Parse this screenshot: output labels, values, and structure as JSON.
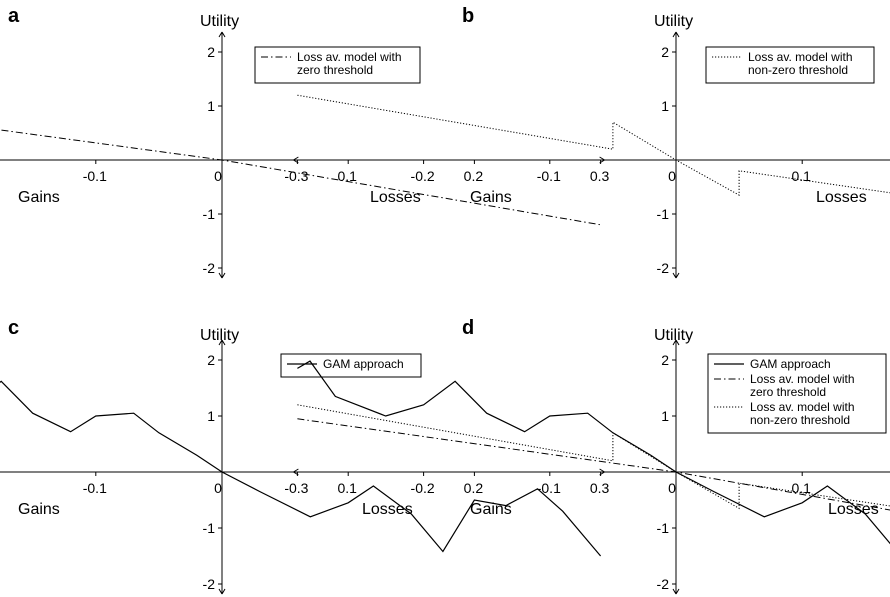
{
  "chart_data": [
    {
      "panel": "a",
      "type": "line",
      "title": "",
      "xlabel_left": "Gains",
      "xlabel_right": "Losses",
      "ylabel": "Utility",
      "xlim": [
        -0.3,
        0.3
      ],
      "ylim": [
        -2,
        2
      ],
      "xticks": [
        "-0.3",
        "-0.2",
        "-0.1",
        "0",
        "0.1",
        "0.2",
        "0.3"
      ],
      "yticks": [
        "-2",
        "-1",
        "1",
        "2"
      ],
      "legend": "top-right",
      "series": [
        {
          "name": "Loss av. model with zero threshold",
          "style": "dashdot",
          "x": [
            -0.3,
            0,
            0.3
          ],
          "y": [
            0.95,
            0,
            -1.2
          ]
        }
      ]
    },
    {
      "panel": "b",
      "type": "line",
      "title": "",
      "xlabel_left": "Gains",
      "xlabel_right": "Losses",
      "ylabel": "Utility",
      "xlim": [
        -0.3,
        0.3
      ],
      "ylim": [
        -2,
        2
      ],
      "xticks": [
        "-0.3",
        "-0.2",
        "-0.1",
        "0",
        "0.1",
        "0.2",
        "0.3"
      ],
      "yticks": [
        "-2",
        "-1",
        "1",
        "2"
      ],
      "legend": "top-right",
      "series": [
        {
          "name": "Loss av. model with non-zero threshold",
          "style": "dotted",
          "x": [
            -0.3,
            -0.05,
            -0.05,
            0,
            0.05,
            0.05,
            0.3
          ],
          "y": [
            1.2,
            0.2,
            0.7,
            0,
            -0.65,
            -0.2,
            -1.05
          ]
        }
      ]
    },
    {
      "panel": "c",
      "type": "line",
      "title": "",
      "xlabel_left": "Gains",
      "xlabel_right": "Losses",
      "ylabel": "Utility",
      "xlim": [
        -0.3,
        0.3
      ],
      "ylim": [
        -2,
        2
      ],
      "xticks": [
        "-0.3",
        "-0.2",
        "-0.1",
        "0",
        "0.1",
        "0.2",
        "0.3"
      ],
      "yticks": [
        "-2",
        "-1",
        "1",
        "2"
      ],
      "legend": "top-right",
      "series": [
        {
          "name": "GAM approach",
          "style": "solid",
          "x": [
            -0.3,
            -0.29,
            -0.27,
            -0.23,
            -0.2,
            -0.175,
            -0.15,
            -0.12,
            -0.1,
            -0.07,
            -0.05,
            -0.02,
            0,
            0.03,
            0.07,
            0.1,
            0.12,
            0.15,
            0.175,
            0.2,
            0.225,
            0.25,
            0.27,
            0.3
          ],
          "y": [
            1.85,
            1.98,
            1.35,
            1.0,
            1.2,
            1.62,
            1.05,
            0.72,
            1.0,
            1.05,
            0.7,
            0.3,
            0.0,
            -0.35,
            -0.8,
            -0.55,
            -0.25,
            -0.75,
            -1.42,
            -0.5,
            -0.6,
            -0.3,
            -0.7,
            -1.5
          ]
        }
      ]
    },
    {
      "panel": "d",
      "type": "line",
      "title": "",
      "xlabel_left": "Gains",
      "xlabel_right": "Losses",
      "ylabel": "Utility",
      "xlim": [
        -0.3,
        0.3
      ],
      "ylim": [
        -2,
        2
      ],
      "xticks": [
        "-0.3",
        "-0.2",
        "-0.1",
        "0",
        "0.1",
        "0.2",
        "0.3"
      ],
      "yticks": [
        "-2",
        "-1",
        "1",
        "2"
      ],
      "legend": "top-right",
      "series": [
        {
          "name": "GAM approach",
          "style": "solid",
          "x": [
            -0.3,
            -0.29,
            -0.27,
            -0.23,
            -0.2,
            -0.175,
            -0.15,
            -0.12,
            -0.1,
            -0.07,
            -0.05,
            -0.02,
            0,
            0.03,
            0.07,
            0.1,
            0.12,
            0.15,
            0.175,
            0.2,
            0.225,
            0.25,
            0.27,
            0.3
          ],
          "y": [
            1.85,
            1.98,
            1.35,
            1.0,
            1.2,
            1.62,
            1.05,
            0.72,
            1.0,
            1.05,
            0.7,
            0.3,
            0.0,
            -0.35,
            -0.8,
            -0.55,
            -0.25,
            -0.75,
            -1.42,
            -0.5,
            -0.6,
            -0.3,
            -0.7,
            -1.5
          ]
        },
        {
          "name": "Loss av. model with zero threshold",
          "style": "dashdot",
          "x": [
            -0.3,
            0,
            0.3
          ],
          "y": [
            0.95,
            0,
            -1.2
          ]
        },
        {
          "name": "Loss av. model with non-zero threshold",
          "style": "dotted",
          "x": [
            -0.3,
            -0.05,
            -0.05,
            0,
            0.05,
            0.05,
            0.3
          ],
          "y": [
            1.2,
            0.2,
            0.7,
            0,
            -0.65,
            -0.2,
            -1.05
          ]
        }
      ]
    }
  ]
}
